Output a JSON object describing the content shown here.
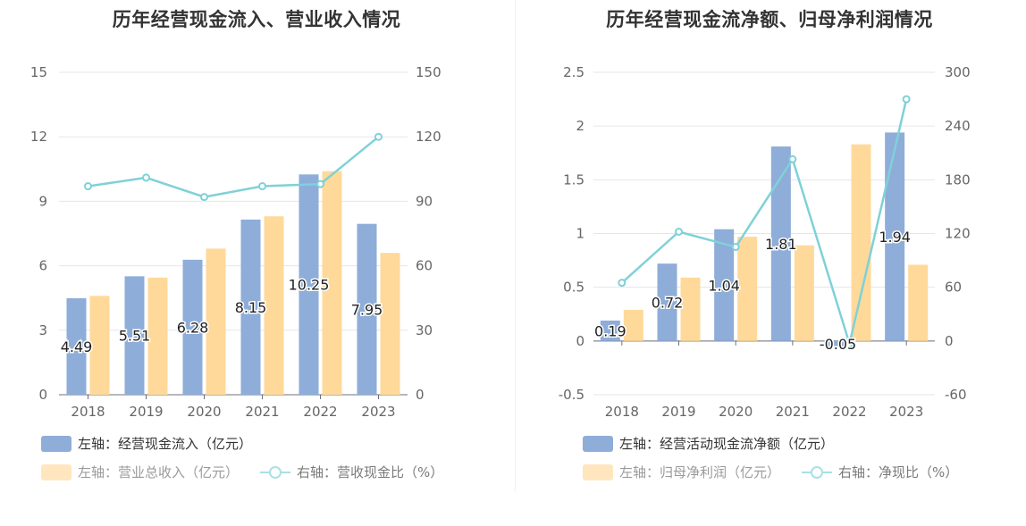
{
  "colors": {
    "bar_primary": "#8eadd9",
    "bar_secondary": "#ffd99a",
    "line": "#7fd1d8",
    "axis_text": "#666666",
    "grid": "#e3e6ee"
  },
  "chart_data": [
    {
      "type": "bar",
      "title": "历年经营现金流入、营业收入情况",
      "categories": [
        "2018",
        "2019",
        "2020",
        "2021",
        "2022",
        "2023"
      ],
      "y_left": {
        "min": 0,
        "max": 15,
        "ticks": [
          "0",
          "3",
          "6",
          "9",
          "12",
          "15"
        ]
      },
      "y_right": {
        "min": 0,
        "max": 150,
        "ticks": [
          "0",
          "30",
          "60",
          "90",
          "120",
          "150"
        ]
      },
      "series": [
        {
          "name": "经营现金流入",
          "type": "bar",
          "axis": "left",
          "values": [
            4.49,
            5.51,
            6.28,
            8.15,
            10.25,
            7.95
          ],
          "labels": [
            "4.49",
            "5.51",
            "6.28",
            "8.15",
            "10.25",
            "7.95"
          ]
        },
        {
          "name": "营业总收入",
          "type": "bar",
          "axis": "left",
          "values": [
            4.6,
            5.45,
            6.8,
            8.3,
            10.4,
            6.6
          ]
        },
        {
          "name": "营收现金比",
          "type": "line",
          "axis": "right",
          "values": [
            97,
            101,
            92,
            97,
            98,
            120
          ]
        }
      ],
      "legend": [
        {
          "prefix": "左轴：",
          "label": "经营现金流入（亿元）"
        },
        {
          "prefix": "左轴：",
          "label": "营业总收入（亿元）"
        },
        {
          "prefix": "右轴：",
          "label": "营收现金比（%）"
        }
      ]
    },
    {
      "type": "bar",
      "title": "历年经营现金流净额、归母净利润情况",
      "categories": [
        "2018",
        "2019",
        "2020",
        "2021",
        "2022",
        "2023"
      ],
      "y_left": {
        "min": -0.5,
        "max": 2.5,
        "ticks": [
          "-0.5",
          "0",
          "0.5",
          "1",
          "1.5",
          "2",
          "2.5"
        ]
      },
      "y_right": {
        "min": -60,
        "max": 300,
        "ticks": [
          "-60",
          "0",
          "60",
          "120",
          "180",
          "240",
          "300"
        ]
      },
      "series": [
        {
          "name": "经营活动现金流净额",
          "type": "bar",
          "axis": "left",
          "values": [
            0.19,
            0.72,
            1.04,
            1.81,
            -0.05,
            1.94
          ],
          "labels": [
            "0.19",
            "0.72",
            "1.04",
            "1.81",
            "-0.05",
            "1.94"
          ]
        },
        {
          "name": "归母净利润",
          "type": "bar",
          "axis": "left",
          "values": [
            0.29,
            0.59,
            0.97,
            0.89,
            1.83,
            0.71
          ]
        },
        {
          "name": "净现比",
          "type": "line",
          "axis": "right",
          "values": [
            65,
            122,
            105,
            203,
            -3,
            270
          ]
        }
      ],
      "legend": [
        {
          "prefix": "左轴：",
          "label": "经营活动现金流净额（亿元）"
        },
        {
          "prefix": "左轴：",
          "label": "归母净利润（亿元）"
        },
        {
          "prefix": "右轴：",
          "label": "净现比（%）"
        }
      ]
    }
  ]
}
